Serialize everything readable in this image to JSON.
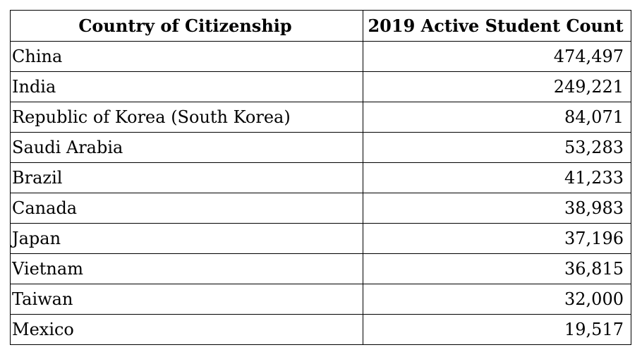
{
  "chart_data": {
    "type": "table",
    "columns": [
      "Country of Citizenship",
      "2019 Active Student Count"
    ],
    "rows": [
      {
        "country": "China",
        "count": "474,497"
      },
      {
        "country": "India",
        "count": "249,221"
      },
      {
        "country": "Republic of Korea (South Korea)",
        "count": "84,071"
      },
      {
        "country": "Saudi Arabia",
        "count": "53,283"
      },
      {
        "country": "Brazil",
        "count": "41,233"
      },
      {
        "country": "Canada",
        "count": "38,983"
      },
      {
        "country": "Japan",
        "count": "37,196"
      },
      {
        "country": "Vietnam",
        "count": "36,815"
      },
      {
        "country": "Taiwan",
        "count": "32,000"
      },
      {
        "country": "Mexico",
        "count": "19,517"
      }
    ]
  }
}
